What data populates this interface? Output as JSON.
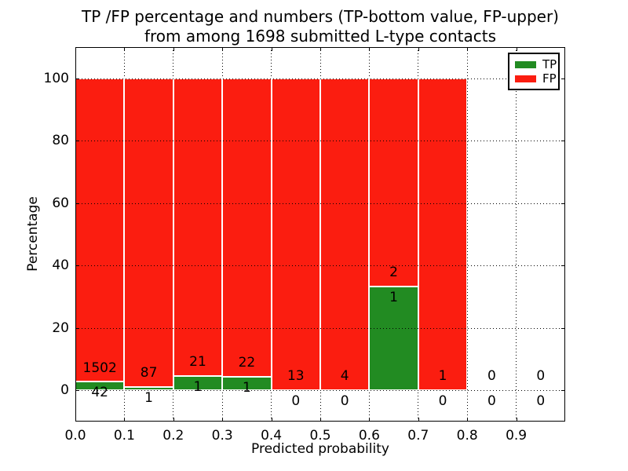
{
  "figure": {
    "title_line1": "TP /FP percentage and numbers (TP-bottom value, FP-upper)",
    "title_line2": "from among 1698 submitted L-type contacts",
    "xlabel": "Predicted probability",
    "ylabel": "Percentage"
  },
  "legend": {
    "position": "upper right",
    "items": [
      {
        "label": "TP",
        "color": "#228b22"
      },
      {
        "label": "FP",
        "color": "#fb1d10"
      }
    ]
  },
  "chart_data": {
    "type": "bar",
    "stacked": true,
    "normalized_to_percent": true,
    "title": "TP /FP percentage and numbers (TP-bottom value, FP-upper) from among 1698 submitted L-type contacts",
    "xlabel": "Predicted probability",
    "ylabel": "Percentage",
    "total_contacts": 1698,
    "bin_width": 0.1,
    "categories": [
      "0.0-0.1",
      "0.1-0.2",
      "0.2-0.3",
      "0.3-0.4",
      "0.4-0.5",
      "0.5-0.6",
      "0.6-0.7",
      "0.7-0.8",
      "0.8-0.9",
      "0.9-1.0"
    ],
    "series": [
      {
        "name": "TP",
        "color": "#228b22",
        "counts": [
          42,
          1,
          1,
          1,
          0,
          0,
          1,
          0,
          0,
          0
        ]
      },
      {
        "name": "FP",
        "color": "#fb1d10",
        "counts": [
          1502,
          87,
          21,
          22,
          13,
          4,
          2,
          1,
          0,
          0
        ]
      }
    ],
    "tp_percent_per_bin": [
      2.72,
      1.14,
      4.55,
      4.35,
      0.0,
      0.0,
      33.33,
      0.0,
      0.0,
      0.0
    ],
    "x_tick_labels": [
      "0.0",
      "0.1",
      "0.2",
      "0.3",
      "0.4",
      "0.5",
      "0.6",
      "0.7",
      "0.8",
      "0.9"
    ],
    "y_ticks": [
      0,
      20,
      40,
      60,
      80,
      100
    ],
    "xlim": [
      0.0,
      1.0
    ],
    "ylim": [
      -10,
      110
    ],
    "grid": "dotted",
    "legend_position": "upper right",
    "bar_edge_color": "#ffffff",
    "label_note": "FP count printed above TP bar top, TP count printed below it"
  }
}
